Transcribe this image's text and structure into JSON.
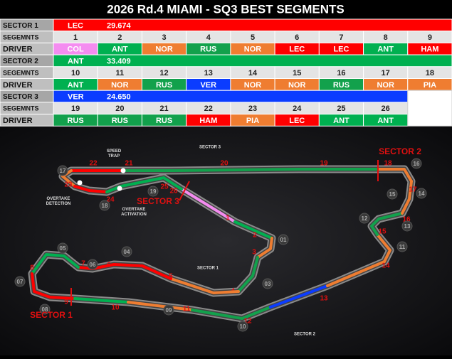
{
  "title": "2026 Rd.4 MIAMI - SQ3 BEST SEGMENTS",
  "segments_label": "SEGEMNTS",
  "driver_label": "DRIVER",
  "driver_colors": {
    "COL": "#f48cf0",
    "ANT": "#00b050",
    "NOR": "#ef7d31",
    "RUS": "#12a14c",
    "LEC": "#ff0000",
    "HAM": "#ff0000",
    "PIA": "#ef7d31",
    "VER": "#0b3cff"
  },
  "sectors": [
    {
      "label": "SECTOR 1",
      "driver": "LEC",
      "time": "29.674",
      "segments": [
        1,
        2,
        3,
        4,
        5,
        6,
        7,
        8,
        9
      ],
      "drivers": [
        "COL",
        "ANT",
        "NOR",
        "RUS",
        "NOR",
        "LEC",
        "LEC",
        "ANT",
        "HAM"
      ]
    },
    {
      "label": "SECTOR 2",
      "driver": "ANT",
      "time": "33.409",
      "segments": [
        10,
        11,
        12,
        13,
        14,
        15,
        16,
        17,
        18
      ],
      "drivers": [
        "ANT",
        "NOR",
        "RUS",
        "VER",
        "NOR",
        "NOR",
        "RUS",
        "NOR",
        "PIA"
      ]
    },
    {
      "label": "SECTOR 3",
      "driver": "VER",
      "time": "24.650",
      "segments": [
        19,
        20,
        21,
        22,
        23,
        24,
        25,
        26
      ],
      "drivers": [
        "RUS",
        "RUS",
        "RUS",
        "HAM",
        "PIA",
        "LEC",
        "ANT",
        "ANT"
      ]
    }
  ],
  "map": {
    "speed_trap": "SPEED TRAP",
    "overtake_detection": "OVERTAKE DETECTION",
    "overtake_activation": "OVERTAKE ACTIVATION",
    "sector_marks": [
      "SECTOR 1",
      "SECTOR 2",
      "SECTOR 3"
    ],
    "sector_zones": [
      "SECTOR 1",
      "SECTOR 2",
      "SECTOR 3"
    ],
    "corners": [
      "01",
      "03",
      "04",
      "05",
      "06",
      "07",
      "08",
      "09",
      "10",
      "11",
      "12",
      "13",
      "14",
      "15",
      "16",
      "17",
      "18",
      "19"
    ]
  }
}
